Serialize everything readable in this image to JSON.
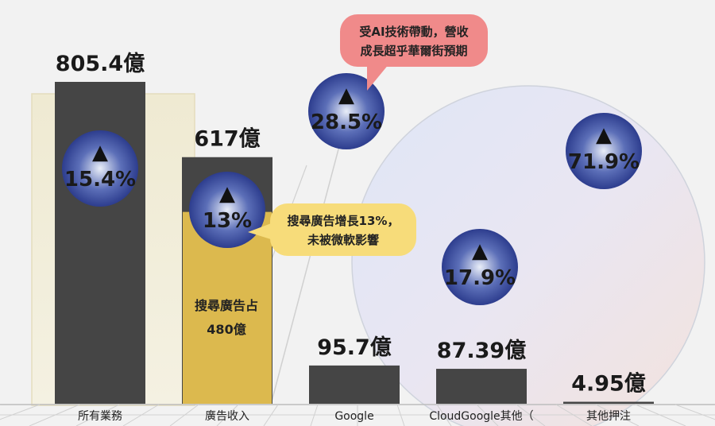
{
  "chart_data": {
    "type": "bar",
    "categories": [
      "所有業務",
      "廣告收入",
      "Google",
      "CloudGoogle其他（",
      "其他押注"
    ],
    "values": [
      805.4,
      617,
      95.7,
      87.39,
      4.95
    ],
    "value_labels": [
      "805.4億",
      "617億",
      "95.7億",
      "87.39億",
      "4.95億"
    ],
    "growth_labels": [
      "15.4%",
      "13%",
      "28.5%",
      "17.9%",
      "71.9%"
    ],
    "growth_symbol": "▲",
    "ad_breakdown": {
      "search_value": 480,
      "label_line1": "搜尋廣告占",
      "label_line2": "480億"
    },
    "ylim": [
      0,
      900
    ],
    "grid": false,
    "colors": {
      "bar": "#454545",
      "search_segment": "#dcb94e",
      "growth_bubble": "#3f4f9c",
      "callout_pink": "#f08a8a",
      "callout_yellow": "#f7dc7a"
    }
  },
  "callouts": {
    "ai": {
      "line1": "受AI技術帶動，營收",
      "line2": "成長超乎華爾街預期"
    },
    "search": {
      "line1": "搜尋廣告增長13%，",
      "line2": "未被微軟影響"
    }
  }
}
